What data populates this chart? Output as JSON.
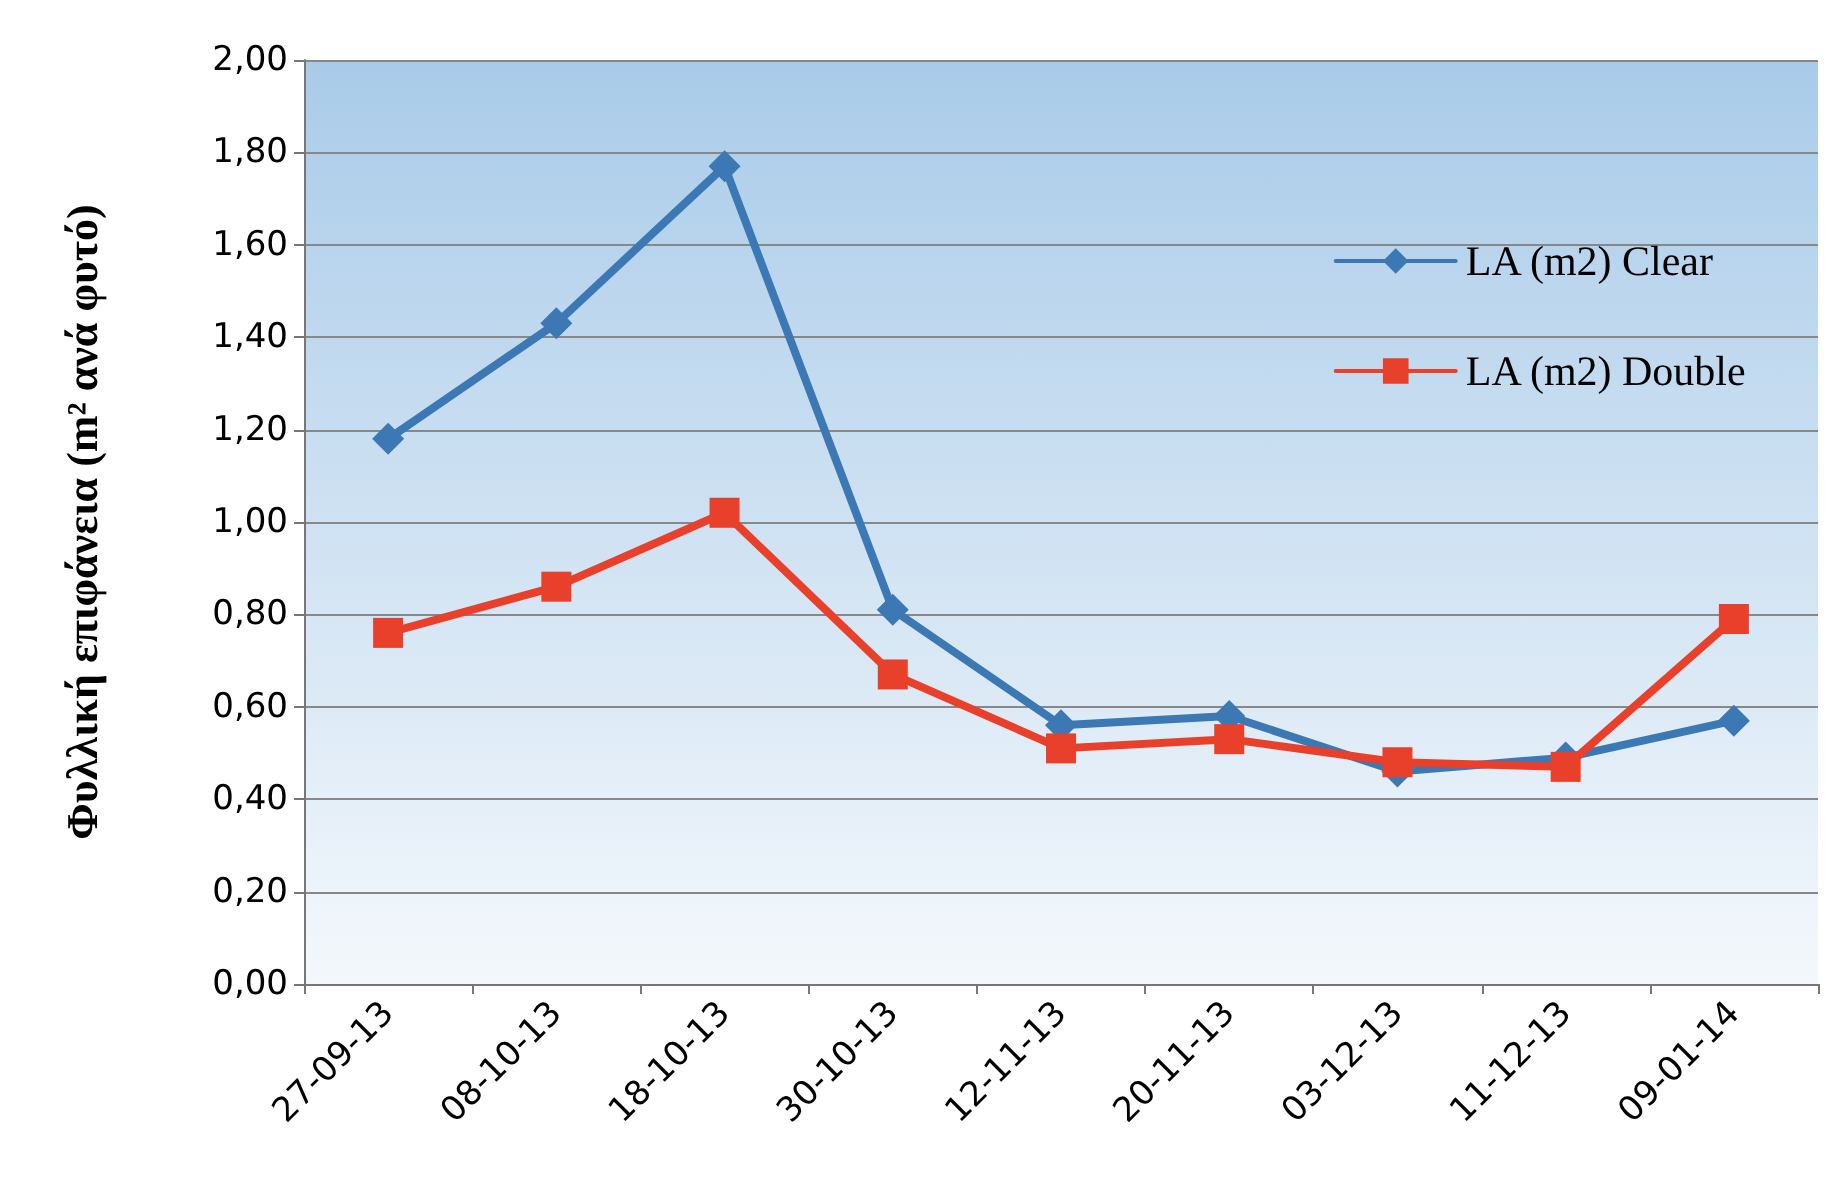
{
  "chart_data": {
    "type": "line",
    "ylabel": "Φυλλική επιφάνεια (m² ανά φυτό)",
    "categories": [
      "27-09-13",
      "08-10-13",
      "18-10-13",
      "30-10-13",
      "12-11-13",
      "20-11-13",
      "03-12-13",
      "11-12-13",
      "09-01-14"
    ],
    "series": [
      {
        "name": "LA (m2) Clear",
        "color": "#3c78b4",
        "marker": "diamond",
        "values": [
          1.18,
          1.43,
          1.77,
          0.81,
          0.56,
          0.58,
          0.46,
          0.49,
          0.57
        ]
      },
      {
        "name": "LA (m2) Double",
        "color": "#e8402a",
        "marker": "square",
        "values": [
          0.76,
          0.86,
          1.02,
          0.67,
          0.51,
          0.53,
          0.48,
          0.47,
          0.79
        ]
      }
    ],
    "ylim": [
      0,
      2
    ],
    "yticks": [
      {
        "value": 0,
        "label": "0,00"
      },
      {
        "value": 0.2,
        "label": "0,20"
      },
      {
        "value": 0.4,
        "label": "0,40"
      },
      {
        "value": 0.6,
        "label": "0,60"
      },
      {
        "value": 0.8,
        "label": "0,80"
      },
      {
        "value": 1,
        "label": "1,00"
      },
      {
        "value": 1.2,
        "label": "1,20"
      },
      {
        "value": 1.4,
        "label": "1,40"
      },
      {
        "value": 1.6,
        "label": "1,60"
      },
      {
        "value": 1.8,
        "label": "1,80"
      },
      {
        "value": 2,
        "label": "2,00"
      }
    ],
    "grid": "y",
    "legend": "top right",
    "line_style": "solid"
  }
}
